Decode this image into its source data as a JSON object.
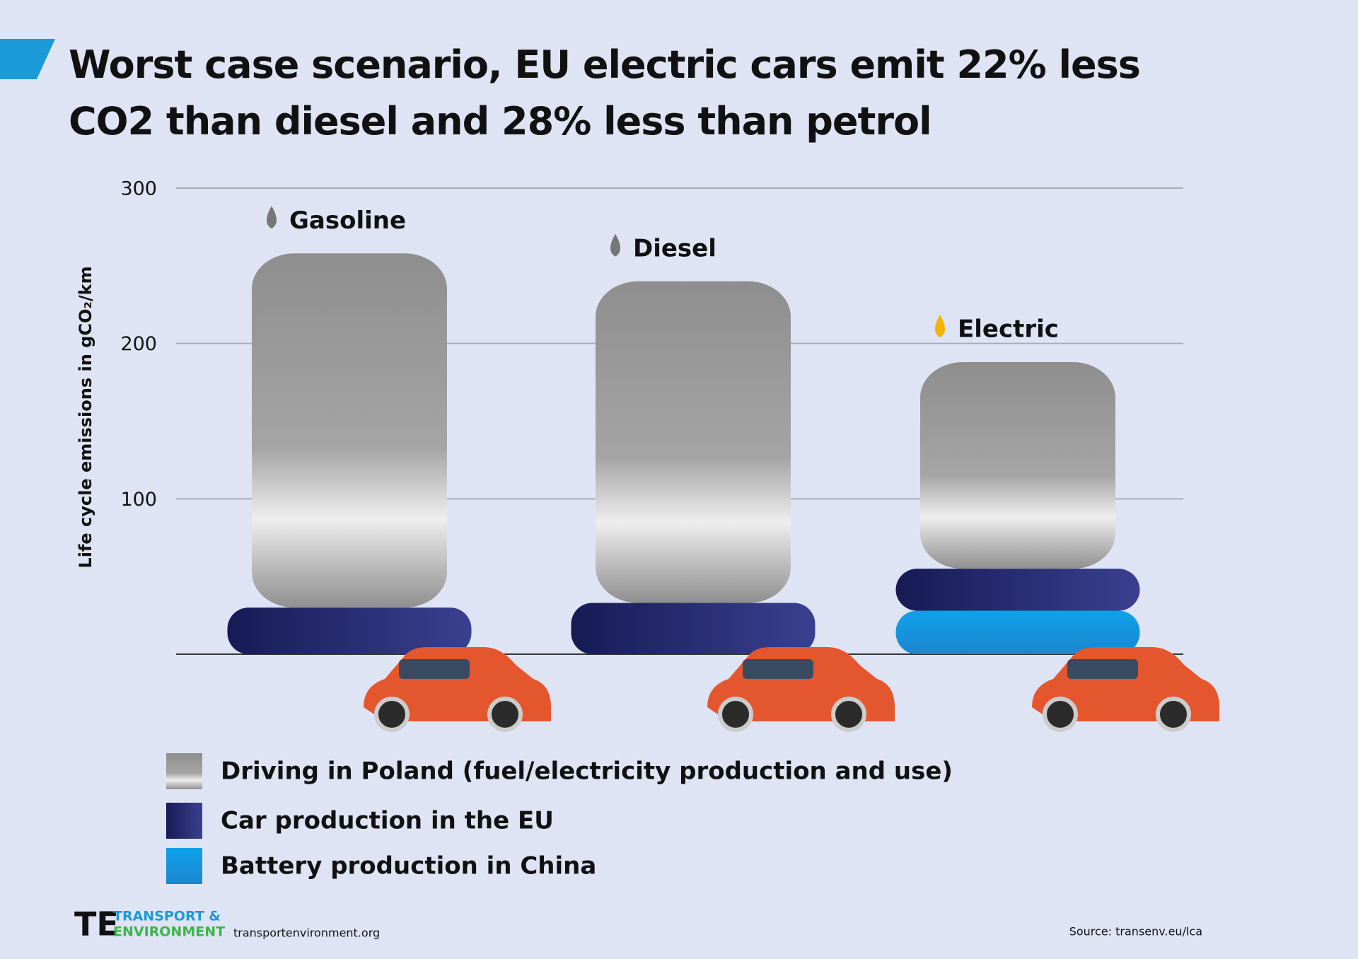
{
  "chart_data": {
    "type": "stacked-bar",
    "title": "Worst case scenario, EU electric cars emit 22% less CO2 than diesel and 28% less than petrol",
    "y_label": "Life cycle emissions in gCO₂/km",
    "categories": [
      "Gasoline",
      "Diesel",
      "Electric"
    ],
    "series": [
      {
        "name": "Battery production in China",
        "color": "#1e9be0",
        "values": [
          0,
          0,
          28
        ]
      },
      {
        "name": "Car production in the EU",
        "color": "#1a1f5c",
        "values": [
          30,
          33,
          27
        ]
      },
      {
        "name": "Driving in Poland (fuel/electricity production and use)",
        "color": "#9a9a9a",
        "values": [
          228,
          207,
          133
        ]
      }
    ],
    "ylim": [
      0,
      300
    ],
    "yticks": [
      100,
      200,
      300
    ],
    "grid": true,
    "source": "Source: transenv.eu/lca",
    "logo": [
      "TRANSPORT &",
      "ENVIRONMENT"
    ],
    "website": "transportenvironment.org"
  }
}
